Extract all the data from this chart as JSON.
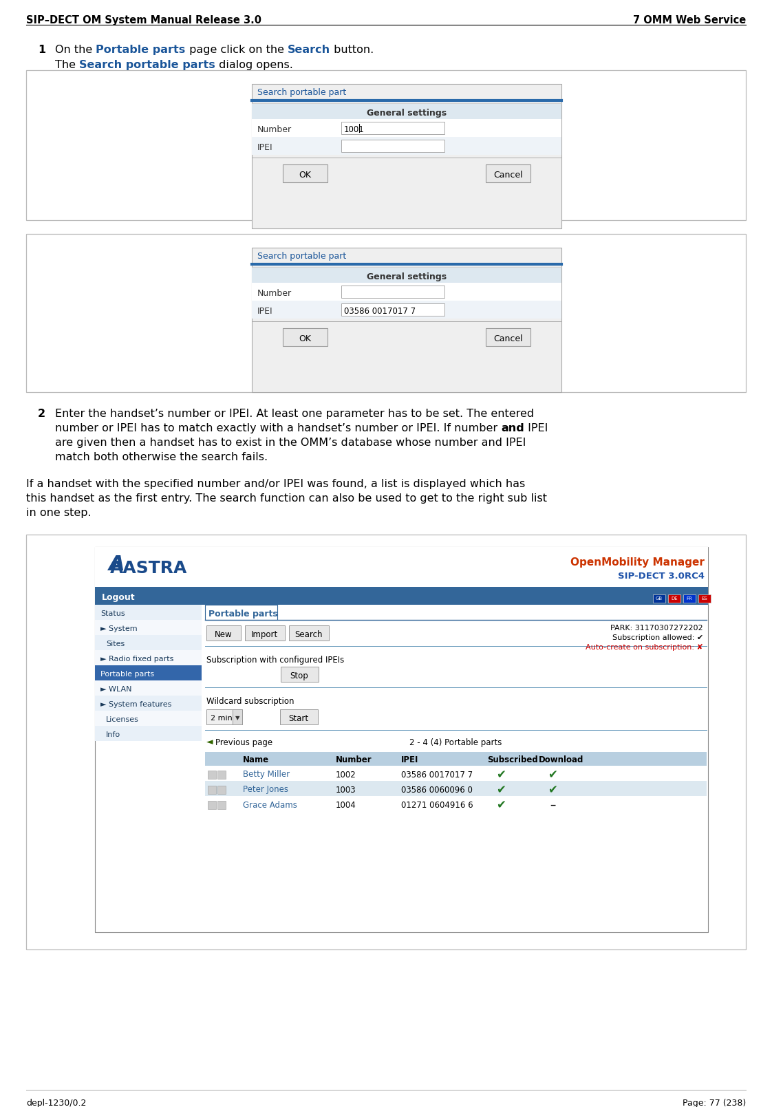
{
  "header_left": "SIP–DECT OM System Manual Release 3.0",
  "header_right": "7 OMM Web Service",
  "footer_left": "depl-1230/0.2",
  "footer_right": "Page: 77 (238)",
  "bg_color": "#ffffff",
  "text_color": "#000000",
  "link_color": "#1a5599",
  "bold_color": "#1a5599",
  "dialog_title_color": "#1a5599",
  "dialog_title_bar_color": "#2a6aaa",
  "dialog_header_bg": "#dde8f0",
  "dialog_row_alt_bg": "#eef3f8",
  "dialog_button_bg": "#e8e8e8",
  "dialog_button_border": "#999999",
  "screenshot_border_color": "#bbbbbb",
  "dialog1_title": "Search portable part",
  "dialog1_header": "General settings",
  "dialog1_number_label": "Number",
  "dialog1_number_value": "1001",
  "dialog1_ipei_label": "IPEI",
  "dialog1_ipei_value": "",
  "dialog2_title": "Search portable part",
  "dialog2_header": "General settings",
  "dialog2_number_label": "Number",
  "dialog2_number_value": "",
  "dialog2_ipei_label": "IPEI",
  "dialog2_ipei_value": "03586 0017017 7",
  "dialog_ok": "OK",
  "dialog_cancel": "Cancel",
  "omm_title": "OpenMobility Manager",
  "omm_subtitle": "SIP-DECT 3.0RC4",
  "omm_title_color": "#cc3300",
  "omm_subtitle_color": "#2255aa",
  "omm_nav_bg": "#336699",
  "omm_selected_bg": "#3366aa",
  "omm_logout_bg": "#336699",
  "omm_header_bar_color": "#336699",
  "omm_content_tab_color": "#336699",
  "table_header_bg": "#b8cfe0",
  "table_row1_bg": "#ffffff",
  "table_row2_bg": "#dce8f0",
  "table_data": [
    {
      "name": "Betty Miller",
      "number": "1002",
      "ipei": "03586 0017017 7",
      "subscribed": true,
      "download": true
    },
    {
      "name": "Peter Jones",
      "number": "1003",
      "ipei": "03586 0060096 0",
      "subscribed": true,
      "download": true
    },
    {
      "name": "Grace Adams",
      "number": "1004",
      "ipei": "01271 0604916 6",
      "subscribed": true,
      "download": false
    }
  ],
  "park_text": "PARK: 31170307272202",
  "sub_allowed_text": "Subscription allowed:",
  "auto_create_text": "Auto-create on subscription:",
  "sub_ipei_text": "Subscription with configured IPEIs",
  "wildcard_text": "Wildcard subscription",
  "prev_page_text": "Previous page",
  "page_count_text": "2 - 4 (4) Portable parts",
  "nav_items": [
    {
      "label": "Status",
      "arrow": false,
      "selected": false,
      "indent": false
    },
    {
      "label": "System",
      "arrow": true,
      "selected": false,
      "indent": false
    },
    {
      "label": "Sites",
      "arrow": false,
      "selected": false,
      "indent": true
    },
    {
      "label": "Radio fixed parts",
      "arrow": true,
      "selected": false,
      "indent": false
    },
    {
      "label": "Portable parts",
      "arrow": false,
      "selected": true,
      "indent": false
    },
    {
      "label": "WLAN",
      "arrow": true,
      "selected": false,
      "indent": false
    },
    {
      "label": "System features",
      "arrow": true,
      "selected": false,
      "indent": false
    },
    {
      "label": "Licenses",
      "arrow": false,
      "selected": false,
      "indent": true
    },
    {
      "label": "Info",
      "arrow": false,
      "selected": false,
      "indent": true
    }
  ]
}
